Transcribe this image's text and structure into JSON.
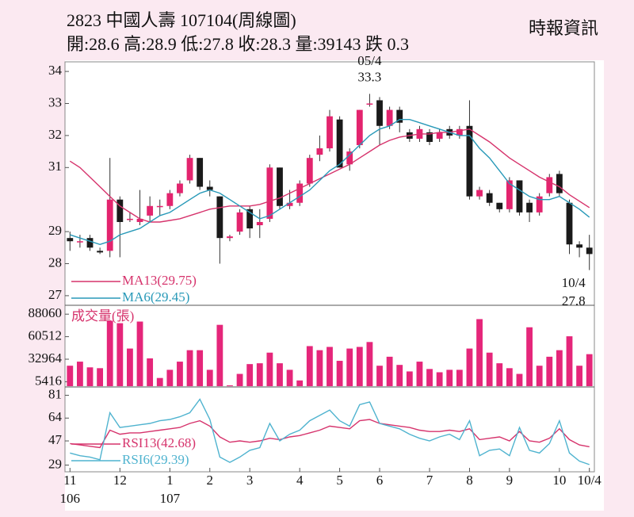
{
  "chart_data": {
    "type": "candlestick",
    "title": "2823  中國人壽 107104(周線圖)",
    "subtitle": "開:28.6 高:28.9 低:27.8 收:28.3 量:39143 跌 0.3",
    "source": "時報資訊",
    "categories": [
      "11",
      null,
      null,
      null,
      null,
      "12",
      null,
      null,
      null,
      null,
      "1",
      null,
      null,
      null,
      "2",
      null,
      null,
      null,
      "3",
      null,
      null,
      null,
      null,
      "4",
      null,
      null,
      null,
      "5",
      null,
      null,
      null,
      "6",
      null,
      null,
      null,
      null,
      "7",
      null,
      null,
      null,
      "8",
      null,
      null,
      null,
      "9",
      null,
      null,
      null,
      null,
      "10",
      null,
      null,
      "10/4"
    ],
    "year_labels": [
      "106",
      null,
      null,
      null,
      null,
      null,
      null,
      null,
      null,
      null,
      "107",
      null,
      null,
      null,
      null,
      null,
      null,
      null,
      null,
      null,
      null,
      null,
      null,
      null,
      null,
      null,
      null,
      null,
      null,
      null,
      null,
      null,
      null,
      null,
      null,
      null,
      null,
      null,
      null,
      null,
      null,
      null,
      null,
      null,
      null,
      null,
      null,
      null,
      null,
      null,
      null,
      null,
      null
    ],
    "candles": {
      "open": [
        28.8,
        28.7,
        28.8,
        28.4,
        28.4,
        30.0,
        29.4,
        29.3,
        29.5,
        29.8,
        29.8,
        30.2,
        30.6,
        31.3,
        30.4,
        30.1,
        28.8,
        29.0,
        29.7,
        29.2,
        29.4,
        31.0,
        29.8,
        29.9,
        30.5,
        31.4,
        31.6,
        32.5,
        31.1,
        31.7,
        33.0,
        33.1,
        32.3,
        32.8,
        32.1,
        31.9,
        32.1,
        31.9,
        32.2,
        32.0,
        32.3,
        30.1,
        30.2,
        29.9,
        29.7,
        30.6,
        29.9,
        29.6,
        30.2,
        30.8,
        29.9,
        28.6,
        28.5
      ],
      "high": [
        29.0,
        28.9,
        28.9,
        28.5,
        31.3,
        30.1,
        29.6,
        30.3,
        30.1,
        30.0,
        30.3,
        30.6,
        31.4,
        31.3,
        30.6,
        30.1,
        28.9,
        29.7,
        29.8,
        29.7,
        31.1,
        31.0,
        30.3,
        30.6,
        31.4,
        32.0,
        32.8,
        32.6,
        31.6,
        32.8,
        33.3,
        33.2,
        32.9,
        32.9,
        32.2,
        32.3,
        32.2,
        32.2,
        32.3,
        32.3,
        33.1,
        30.4,
        30.3,
        29.9,
        30.7,
        30.6,
        30.0,
        30.2,
        30.8,
        30.9,
        30.0,
        28.7,
        28.9
      ],
      "low": [
        28.4,
        28.5,
        28.4,
        28.3,
        28.2,
        28.2,
        29.3,
        29.2,
        29.3,
        29.5,
        29.7,
        30.1,
        30.5,
        30.3,
        30.1,
        28.0,
        28.7,
        28.9,
        28.8,
        28.8,
        29.3,
        29.7,
        29.7,
        29.8,
        30.4,
        31.2,
        31.5,
        31.0,
        30.9,
        31.6,
        32.9,
        31.7,
        32.2,
        32.1,
        31.8,
        31.8,
        31.7,
        31.8,
        31.9,
        31.9,
        30.0,
        30.0,
        29.8,
        29.6,
        29.6,
        29.5,
        29.3,
        29.5,
        30.1,
        30.1,
        28.3,
        28.2,
        27.8
      ],
      "close": [
        28.7,
        28.7,
        28.5,
        28.35,
        30.0,
        29.3,
        29.4,
        29.4,
        29.8,
        29.8,
        30.2,
        30.5,
        31.3,
        30.4,
        30.3,
        28.8,
        28.85,
        29.6,
        29.1,
        29.3,
        31.0,
        29.8,
        29.9,
        30.5,
        31.3,
        31.6,
        32.6,
        31.0,
        31.5,
        32.8,
        33.0,
        32.3,
        32.8,
        32.4,
        31.9,
        32.2,
        31.8,
        32.1,
        32.0,
        32.2,
        30.1,
        30.3,
        29.9,
        29.7,
        30.6,
        29.6,
        29.6,
        30.1,
        30.7,
        30.2,
        28.6,
        28.5,
        28.3
      ]
    },
    "up_color": "#e3246e",
    "down_color": "#1a1a1a",
    "ylim": [
      26.75,
      34.25
    ],
    "yticks": [
      34,
      33,
      32,
      31,
      29,
      28,
      27
    ],
    "series": [
      {
        "name": "MA13(29.75)",
        "color": "#d6336c",
        "values": [
          31.2,
          31.0,
          30.7,
          30.4,
          30.1,
          29.8,
          29.6,
          29.4,
          29.3,
          29.3,
          29.35,
          29.4,
          29.5,
          29.6,
          29.7,
          29.75,
          29.8,
          29.8,
          29.8,
          29.85,
          29.95,
          30.05,
          30.2,
          30.35,
          30.5,
          30.65,
          30.8,
          30.95,
          31.1,
          31.3,
          31.5,
          31.7,
          31.85,
          31.95,
          32.0,
          32.05,
          32.05,
          32.1,
          32.1,
          32.15,
          32.2,
          32.0,
          31.8,
          31.55,
          31.3,
          31.1,
          30.9,
          30.7,
          30.55,
          30.4,
          30.15,
          29.95,
          29.75
        ]
      },
      {
        "name": "MA6(29.45)",
        "color": "#2899b8",
        "values": [
          28.9,
          28.8,
          28.7,
          28.6,
          28.7,
          28.9,
          29.0,
          29.1,
          29.3,
          29.5,
          29.6,
          29.8,
          30.0,
          30.2,
          30.3,
          30.2,
          30.0,
          29.8,
          29.6,
          29.4,
          29.5,
          29.7,
          29.9,
          30.1,
          30.3,
          30.6,
          30.9,
          31.1,
          31.4,
          31.7,
          32.0,
          32.2,
          32.3,
          32.5,
          32.5,
          32.4,
          32.3,
          32.2,
          32.1,
          32.0,
          32.0,
          31.6,
          31.3,
          30.9,
          30.5,
          30.3,
          30.1,
          30.0,
          30.0,
          30.1,
          29.9,
          29.7,
          29.45
        ]
      }
    ],
    "annotations": [
      {
        "text": "05/4",
        "value": 33.3,
        "value_label": "33.3",
        "index": 30
      },
      {
        "text": "10/4",
        "value": 27.8,
        "value_label": "27.8",
        "index": 52
      }
    ],
    "volume": {
      "title": "成交量(張)",
      "color": "#e5267a",
      "ylim": [
        0,
        96000
      ],
      "yticks": [
        88060,
        60512,
        32964,
        5416
      ],
      "values": [
        25000,
        30000,
        23000,
        22000,
        80000,
        77000,
        46000,
        79000,
        34000,
        10000,
        20000,
        30000,
        44000,
        44000,
        20000,
        75000,
        1000,
        15000,
        27000,
        28000,
        41000,
        28000,
        20000,
        7000,
        49000,
        44000,
        48000,
        31000,
        46000,
        48000,
        54000,
        25000,
        36000,
        26000,
        18000,
        30000,
        21000,
        17000,
        20000,
        20000,
        46000,
        82000,
        41000,
        28000,
        22000,
        15000,
        72000,
        25000,
        36000,
        44000,
        61000,
        25000,
        39143
      ]
    },
    "rsi": {
      "ylim": [
        24,
        86
      ],
      "yticks": [
        81,
        64,
        47,
        29
      ],
      "series": [
        {
          "name": "RSI13(42.68)",
          "color": "#d6336c",
          "values": [
            45,
            44,
            43,
            42,
            55,
            52,
            53,
            53,
            54,
            55,
            56,
            57,
            60,
            62,
            58,
            50,
            46,
            47,
            46,
            47,
            49,
            48,
            50,
            51,
            53,
            55,
            58,
            57,
            56,
            62,
            63,
            60,
            59,
            58,
            57,
            55,
            54,
            54,
            55,
            54,
            56,
            48,
            49,
            50,
            47,
            54,
            47,
            46,
            49,
            56,
            48,
            44,
            42.68
          ]
        },
        {
          "name": "RSI6(29.39)",
          "color": "#4fb3cf",
          "values": [
            38,
            36,
            35,
            33,
            68,
            57,
            58,
            59,
            60,
            62,
            63,
            65,
            68,
            78,
            63,
            35,
            31,
            35,
            40,
            42,
            60,
            47,
            52,
            55,
            62,
            66,
            70,
            62,
            58,
            74,
            76,
            60,
            58,
            56,
            52,
            49,
            47,
            50,
            52,
            48,
            62,
            36,
            40,
            41,
            36,
            57,
            40,
            38,
            45,
            62,
            38,
            32,
            29.39
          ]
        }
      ]
    }
  }
}
